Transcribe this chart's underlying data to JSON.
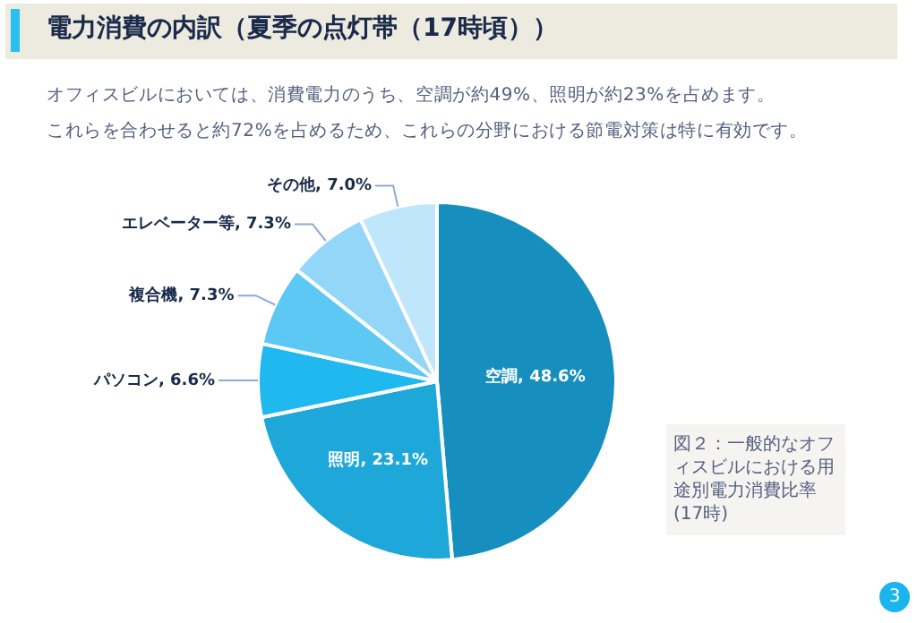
{
  "chart_data": {
    "type": "pie",
    "title": "電力消費の内訳（夏季の点灯帯（17時頃））",
    "subtitle": "オフィスビルにおいては、消費電力のうち、空調が約49%、照明が約23%を占めます。",
    "categories": [
      "空調",
      "照明",
      "パソコン",
      "複合機",
      "エレベーター等",
      "その他"
    ],
    "values": [
      48.6,
      23.1,
      6.6,
      7.3,
      7.3,
      7.0
    ],
    "value_labels": [
      "48.6%",
      "23.1%",
      "6.6%",
      "7.3%",
      "7.3%",
      "7.0%"
    ],
    "colors": [
      "#168fbf",
      "#1ea7d9",
      "#1fb8ef",
      "#5ec8f5",
      "#93d6f8",
      "#c0e6fb"
    ],
    "annotations": [
      "これらを合わせると約72%を占めるため、これらの分野における節電対策は特に有効です。",
      "図２：一般的なオフィスビルにおける用途別電力消費比率(17時)",
      "3"
    ],
    "legend": false
  }
}
